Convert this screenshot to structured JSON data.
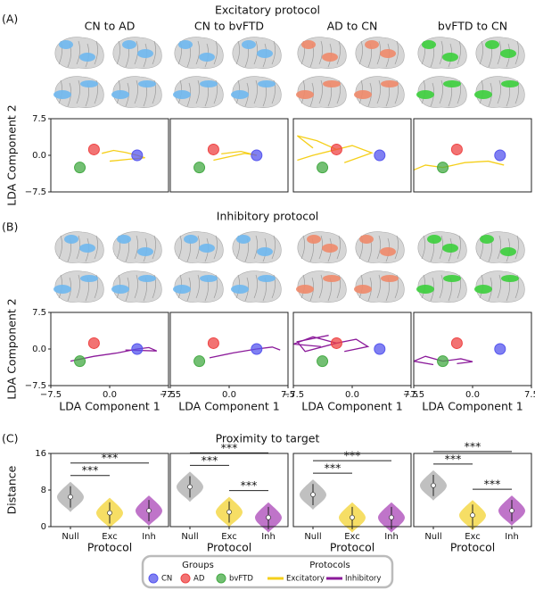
{
  "sections": [
    {
      "label": "(A)",
      "title": "Excitatory protocol"
    },
    {
      "label": "(B)",
      "title": "Inhibitory protocol"
    },
    {
      "label": "(C)",
      "title": "Proximity to target"
    }
  ],
  "chart_data": [
    {
      "type": "scatter",
      "title": "CN to AD",
      "ylabel": "LDA Component 2",
      "xlim": [
        -7.5,
        7.5
      ],
      "ylim": [
        -7.5,
        7.5
      ],
      "yticks": [
        7.5,
        {
          "value": 0,
          "label": "0.0"
        },
        {
          "value": -7.5,
          "label": "−7.5"
        }
      ],
      "groups": [
        {
          "x": 3.5,
          "y": 0,
          "color": "#5555ee"
        },
        {
          "x": -2,
          "y": 1.2,
          "color": "#ee4444"
        },
        {
          "x": -3.8,
          "y": -2.5,
          "color": "#44aa44"
        }
      ],
      "line_color": "#f5cf1a",
      "lines": [
        {
          "x": [
            3.5,
            2,
            0.5,
            -1
          ],
          "y": [
            0,
            0.6,
            1,
            0.4
          ]
        },
        {
          "x": [
            3.5,
            4.5,
            2.5,
            0
          ],
          "y": [
            0,
            -0.5,
            -0.8,
            -1.2
          ]
        }
      ]
    },
    {
      "type": "scatter",
      "title": "CN to bvFTD",
      "xlim": [
        -7.5,
        7.5
      ],
      "ylim": [
        -7.5,
        7.5
      ],
      "groups": [
        {
          "x": 3.5,
          "y": 0,
          "color": "#5555ee"
        },
        {
          "x": -2,
          "y": 1.2,
          "color": "#ee4444"
        },
        {
          "x": -3.8,
          "y": -2.5,
          "color": "#44aa44"
        }
      ],
      "line_color": "#f5cf1a",
      "lines": [
        {
          "x": [
            3.5,
            2,
            0,
            -2
          ],
          "y": [
            0,
            0.4,
            -0.3,
            -1
          ]
        },
        {
          "x": [
            3.5,
            1.5,
            -1
          ],
          "y": [
            0,
            0.8,
            0.3
          ]
        }
      ]
    },
    {
      "type": "scatter",
      "title": "AD to CN",
      "xlim": [
        -7.5,
        7.5
      ],
      "ylim": [
        -7.5,
        7.5
      ],
      "groups": [
        {
          "x": 3.5,
          "y": 0,
          "color": "#5555ee"
        },
        {
          "x": -2,
          "y": 1.2,
          "color": "#ee4444"
        },
        {
          "x": -3.8,
          "y": -2.5,
          "color": "#44aa44"
        }
      ],
      "line_color": "#f5cf1a",
      "lines": [
        {
          "x": [
            -2,
            -4.5,
            -7,
            -5
          ],
          "y": [
            1.2,
            3,
            4,
            1.5
          ]
        },
        {
          "x": [
            -2,
            0,
            2.5,
            -1
          ],
          "y": [
            1.2,
            2,
            0.5,
            -1.5
          ]
        },
        {
          "x": [
            -2,
            -5,
            -7
          ],
          "y": [
            1.2,
            0,
            -1
          ]
        }
      ]
    },
    {
      "type": "scatter",
      "title": "bvFTD to CN",
      "xlim": [
        -7.5,
        7.5
      ],
      "ylim": [
        -7.5,
        7.5
      ],
      "groups": [
        {
          "x": 3.5,
          "y": 0,
          "color": "#5555ee"
        },
        {
          "x": -2,
          "y": 1.2,
          "color": "#ee4444"
        },
        {
          "x": -3.8,
          "y": -2.5,
          "color": "#44aa44"
        }
      ],
      "line_color": "#f5cf1a",
      "lines": [
        {
          "x": [
            -3.8,
            -6,
            -7.5
          ],
          "y": [
            -2.5,
            -2,
            -3
          ]
        },
        {
          "x": [
            -3.8,
            -1,
            2,
            4
          ],
          "y": [
            -2.5,
            -1.5,
            -1.2,
            -2
          ]
        }
      ]
    },
    {
      "type": "scatter",
      "ylabel": "LDA Component 2",
      "xlabel": "LDA Component 1",
      "xlim": [
        -7.5,
        7.5
      ],
      "ylim": [
        -7.5,
        7.5
      ],
      "yticks": [
        7.5,
        {
          "value": 0,
          "label": "0.0"
        },
        {
          "value": -7.5,
          "label": "−7.5"
        }
      ],
      "xticks": [
        {
          "value": -7.5,
          "label": "−7.5"
        },
        {
          "value": 0,
          "label": "0.0"
        },
        7.5
      ],
      "groups": [
        {
          "x": 3.5,
          "y": 0,
          "color": "#5555ee"
        },
        {
          "x": -2,
          "y": 1.2,
          "color": "#ee4444"
        },
        {
          "x": -3.8,
          "y": -2.5,
          "color": "#44aa44"
        }
      ],
      "line_color": "#8b1a9a",
      "lines": [
        {
          "x": [
            3.5,
            1,
            -2,
            -5
          ],
          "y": [
            0,
            -0.8,
            -1.5,
            -2.5
          ]
        },
        {
          "x": [
            3.5,
            5,
            6,
            2
          ],
          "y": [
            0,
            0.3,
            -0.4,
            -0.2
          ]
        }
      ]
    },
    {
      "type": "scatter",
      "xlabel": "LDA Component 1",
      "xlim": [
        -7.5,
        7.5
      ],
      "ylim": [
        -7.5,
        7.5
      ],
      "xticks": [
        {
          "value": -7.5,
          "label": "−7.5"
        },
        {
          "value": 0,
          "label": "0.0"
        },
        7.5
      ],
      "groups": [
        {
          "x": 3.5,
          "y": 0,
          "color": "#5555ee"
        },
        {
          "x": -2,
          "y": 1.2,
          "color": "#ee4444"
        },
        {
          "x": -3.8,
          "y": -2.5,
          "color": "#44aa44"
        }
      ],
      "line_color": "#8b1a9a",
      "lines": [
        {
          "x": [
            3.5,
            0.5,
            -2.5
          ],
          "y": [
            0,
            -0.8,
            -1.8
          ]
        },
        {
          "x": [
            3.5,
            5.5,
            6.5
          ],
          "y": [
            0,
            0.4,
            -0.2
          ]
        }
      ]
    },
    {
      "type": "scatter",
      "xlabel": "LDA Component 1",
      "xlim": [
        -7.5,
        7.5
      ],
      "ylim": [
        -7.5,
        7.5
      ],
      "xticks": [
        {
          "value": -7.5,
          "label": "−7.5"
        },
        {
          "value": 0,
          "label": "0.0"
        },
        7.5
      ],
      "groups": [
        {
          "x": 3.5,
          "y": 0,
          "color": "#5555ee"
        },
        {
          "x": -2,
          "y": 1.2,
          "color": "#ee4444"
        },
        {
          "x": -3.8,
          "y": -2.5,
          "color": "#44aa44"
        }
      ],
      "line_color": "#8b1a9a",
      "lines": [
        {
          "x": [
            -2,
            -5,
            -7.5,
            -4
          ],
          "y": [
            1.2,
            2.5,
            1,
            0.5
          ]
        },
        {
          "x": [
            -2,
            0.5,
            2,
            -1
          ],
          "y": [
            1.2,
            2,
            0.5,
            -0.5
          ]
        },
        {
          "x": [
            -2,
            -6,
            -7,
            -3
          ],
          "y": [
            1.2,
            -0.5,
            1.5,
            2.8
          ]
        }
      ]
    },
    {
      "type": "scatter",
      "xlabel": "LDA Component 1",
      "xlim": [
        -7.5,
        7.5
      ],
      "ylim": [
        -7.5,
        7.5
      ],
      "xticks": [
        {
          "value": -7.5,
          "label": "−7.5"
        },
        {
          "value": 0,
          "label": "0.0"
        },
        7.5
      ],
      "groups": [
        {
          "x": 3.5,
          "y": 0,
          "color": "#5555ee"
        },
        {
          "x": -2,
          "y": 1.2,
          "color": "#ee4444"
        },
        {
          "x": -3.8,
          "y": -2.5,
          "color": "#44aa44"
        }
      ],
      "line_color": "#8b1a9a",
      "lines": [
        {
          "x": [
            -3.8,
            -6,
            -7.5,
            -5
          ],
          "y": [
            -2.5,
            -1.5,
            -2.5,
            -3.2
          ]
        },
        {
          "x": [
            -3.8,
            -1.5,
            0,
            -2
          ],
          "y": [
            -2.5,
            -2,
            -2.6,
            -3
          ]
        }
      ]
    },
    {
      "type": "violin",
      "ylabel": "Distance",
      "xlabel": "Protocol",
      "ylim": [
        0,
        16
      ],
      "yticks": [
        0,
        8,
        16
      ],
      "categories": [
        "Null",
        "Exc",
        "Inh"
      ],
      "values": [
        6.5,
        3,
        3.5
      ],
      "colors": [
        "#b5b5b5",
        "#f5d84a",
        "#b45cc0"
      ],
      "annotations": [
        {
          "text": "***",
          "pair": [
            0,
            1
          ]
        },
        {
          "text": "***",
          "pair": [
            0,
            2
          ]
        }
      ]
    },
    {
      "type": "violin",
      "xlabel": "Protocol",
      "ylim": [
        0,
        16
      ],
      "categories": [
        "Null",
        "Exc",
        "Inh"
      ],
      "values": [
        8.7,
        3.2,
        2
      ],
      "colors": [
        "#b5b5b5",
        "#f5d84a",
        "#b45cc0"
      ],
      "annotations": [
        {
          "text": "***",
          "pair": [
            0,
            1
          ]
        },
        {
          "text": "***",
          "pair": [
            0,
            2
          ]
        },
        {
          "text": "***",
          "pair": [
            1,
            2
          ]
        }
      ]
    },
    {
      "type": "violin",
      "xlabel": "Protocol",
      "ylim": [
        0,
        16
      ],
      "categories": [
        "Null",
        "Exc",
        "Inh"
      ],
      "values": [
        7,
        2,
        2
      ],
      "colors": [
        "#b5b5b5",
        "#f5d84a",
        "#b45cc0"
      ],
      "annotations": [
        {
          "text": "***",
          "pair": [
            0,
            1
          ]
        },
        {
          "text": "***",
          "pair": [
            0,
            2
          ]
        }
      ]
    },
    {
      "type": "violin",
      "xlabel": "Protocol",
      "ylim": [
        0,
        16
      ],
      "categories": [
        "Null",
        "Exc",
        "Inh"
      ],
      "values": [
        9,
        2.5,
        3.5
      ],
      "colors": [
        "#b5b5b5",
        "#f5d84a",
        "#b45cc0"
      ],
      "annotations": [
        {
          "text": "***",
          "pair": [
            0,
            1
          ]
        },
        {
          "text": "***",
          "pair": [
            0,
            2
          ]
        },
        {
          "text": "***",
          "pair": [
            1,
            2
          ]
        }
      ]
    }
  ],
  "legend": {
    "groups_title": "Groups",
    "protocols_title": "Protocols",
    "groups": [
      {
        "name": "CN",
        "color": "#5555ee"
      },
      {
        "name": "AD",
        "color": "#ee4444"
      },
      {
        "name": "bvFTD",
        "color": "#44aa44"
      }
    ],
    "protocols": [
      {
        "name": "Excitatory",
        "color": "#f5cf1a"
      },
      {
        "name": "Inhibitory",
        "color": "#8b1a9a"
      }
    ]
  }
}
